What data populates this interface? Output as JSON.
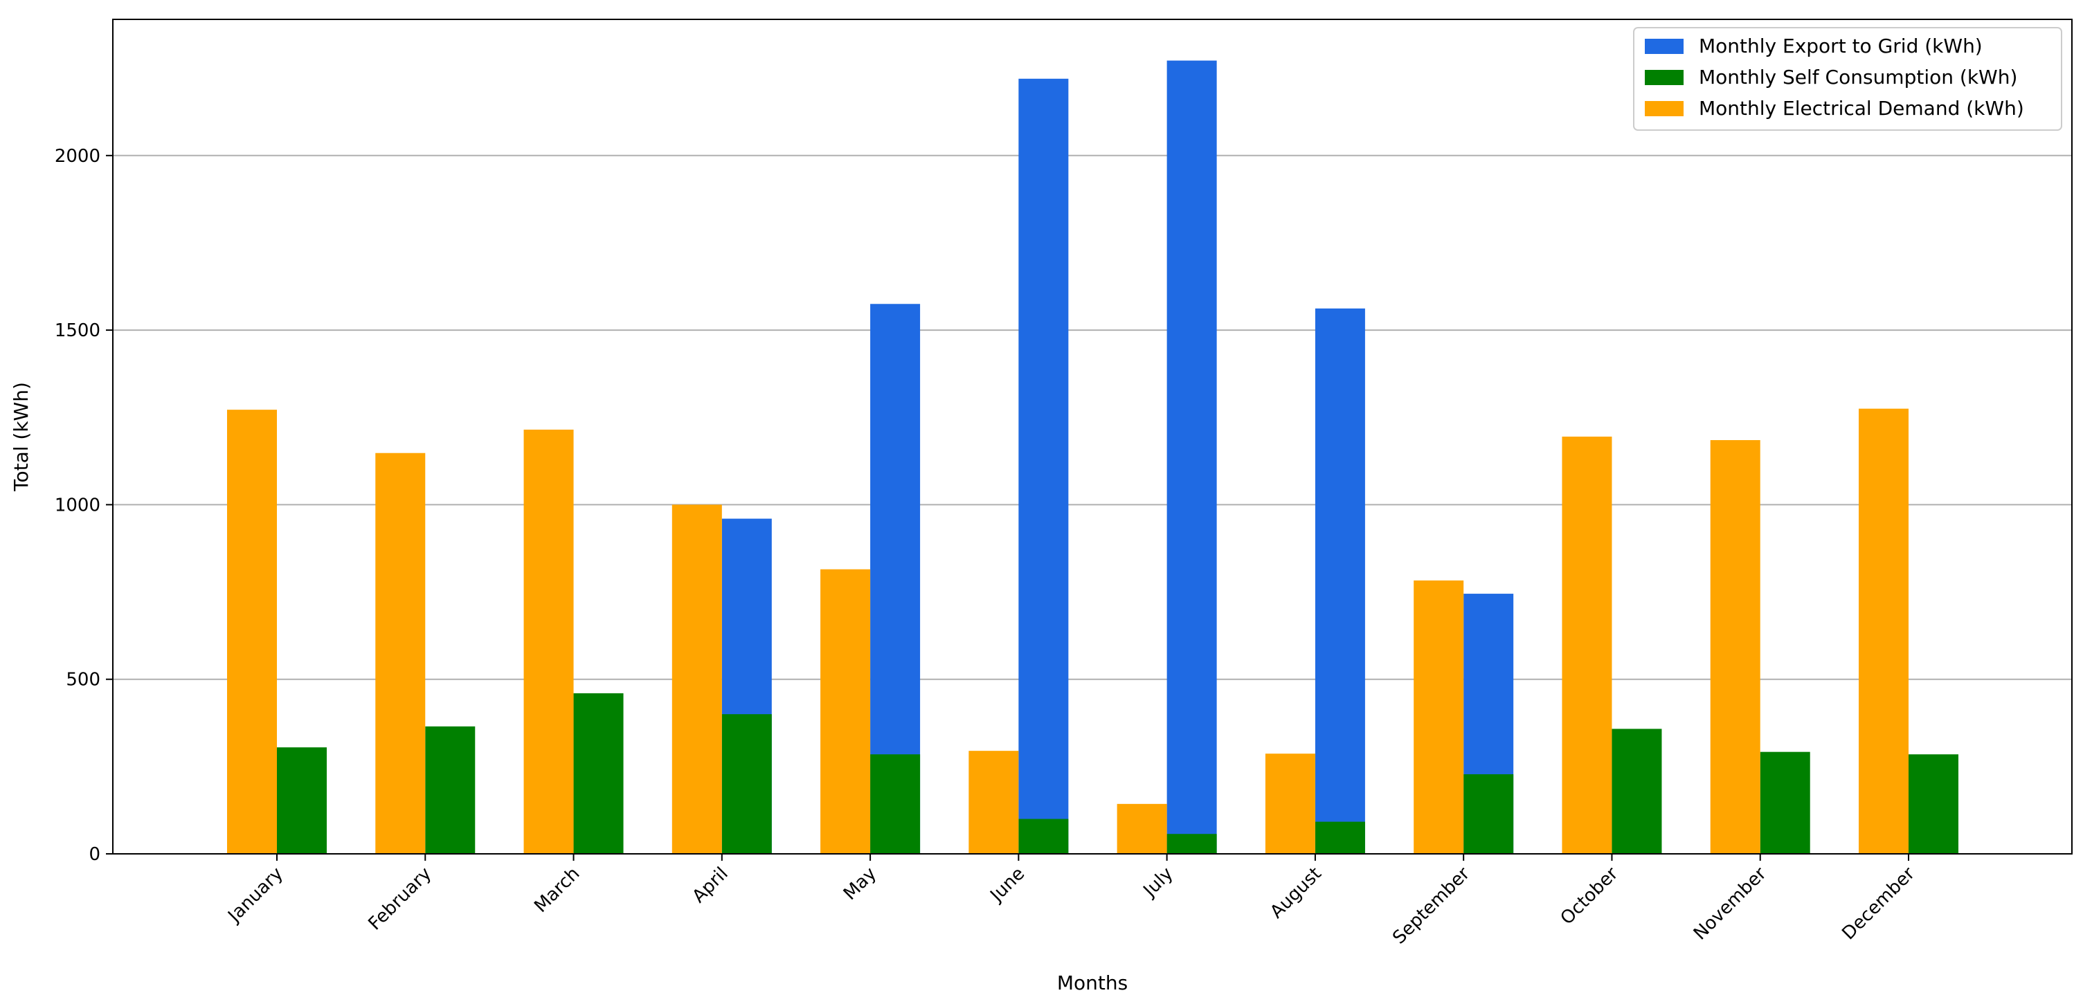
{
  "chart_data": {
    "type": "bar",
    "title": "",
    "xlabel": "Months",
    "ylabel": "Total (kWh)",
    "categories": [
      "January",
      "February",
      "March",
      "April",
      "May",
      "June",
      "July",
      "August",
      "September",
      "October",
      "November",
      "December"
    ],
    "series": [
      {
        "name": "Monthly Export to Grid (kWh)",
        "color": "#1f6ae3",
        "values": [
          0,
          0,
          0,
          960,
          1575,
          2220,
          2272,
          1562,
          745,
          0,
          0,
          0
        ]
      },
      {
        "name": "Monthly Self Consumption (kWh)",
        "color": "#008000",
        "values": [
          305,
          365,
          460,
          400,
          285,
          100,
          57,
          92,
          228,
          358,
          292,
          285
        ]
      },
      {
        "name": "Monthly Electrical Demand (kWh)",
        "color": "#ffa500",
        "values": [
          1272,
          1148,
          1215,
          1000,
          815,
          295,
          143,
          287,
          783,
          1195,
          1185,
          1275
        ]
      }
    ],
    "ylim": [
      0,
      2390
    ],
    "yticks": [
      0,
      500,
      1000,
      1500,
      2000
    ],
    "grid": "horizontal",
    "legend_position": "top-right"
  }
}
